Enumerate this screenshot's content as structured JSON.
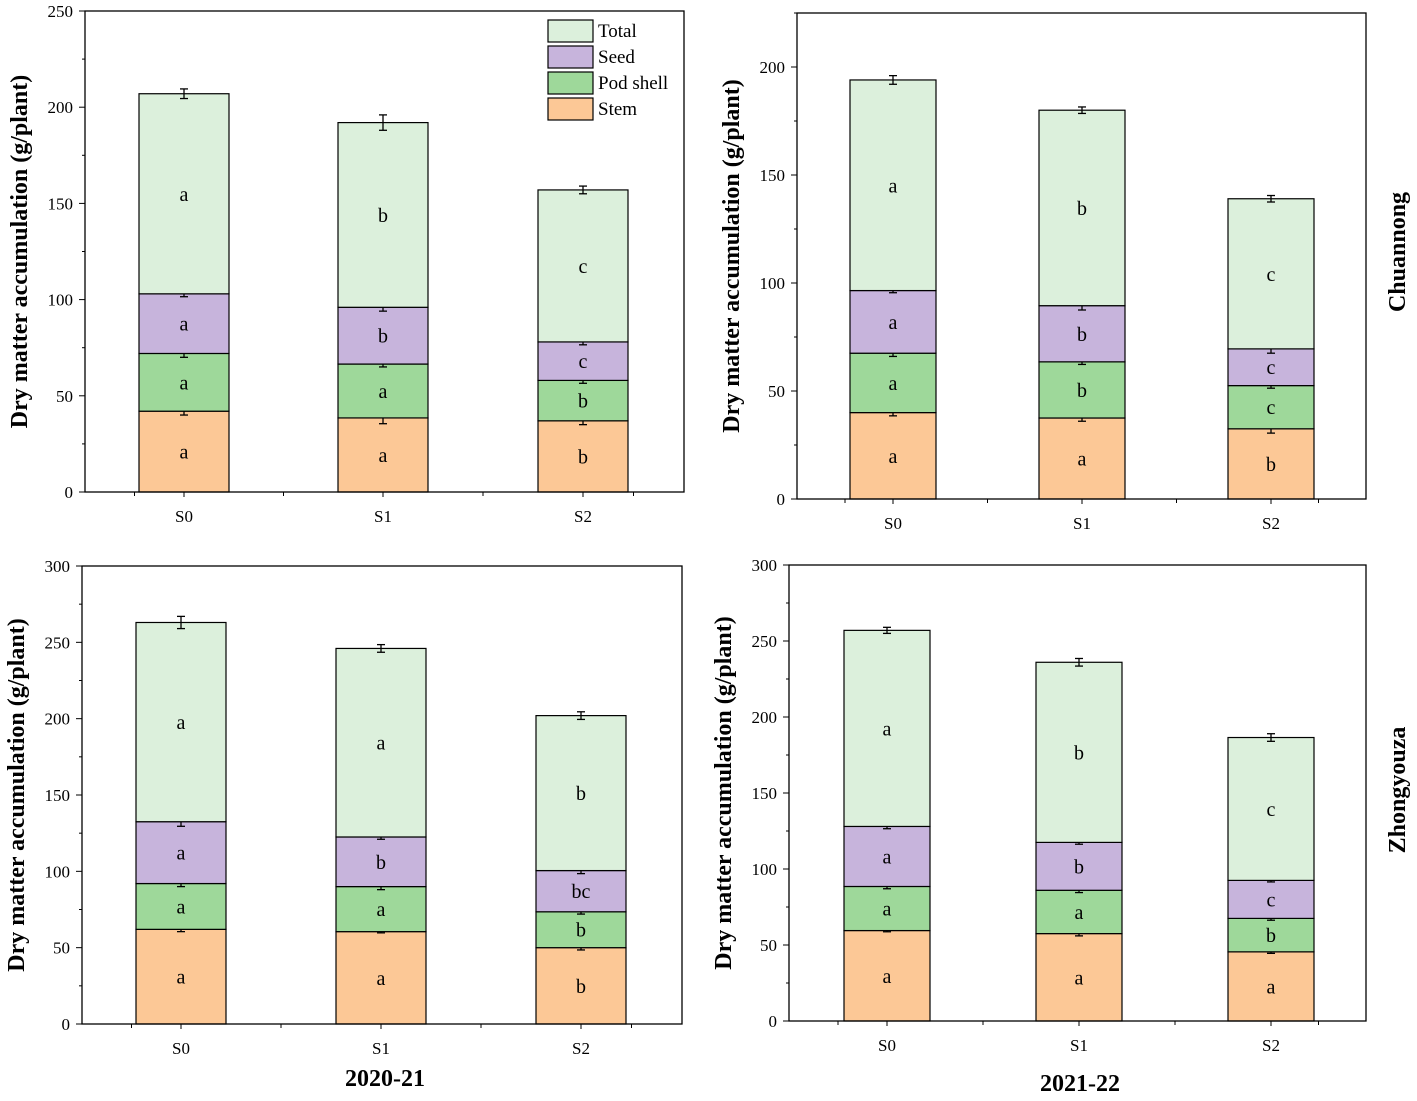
{
  "legend": {
    "position": "top-right of first panel",
    "items": [
      {
        "label": "Total",
        "color": "#dcf0dc"
      },
      {
        "label": "Seed",
        "color": "#c7b4dc"
      },
      {
        "label": "Pod shell",
        "color": "#9ed89a"
      },
      {
        "label": "Stem",
        "color": "#fcc896"
      }
    ]
  },
  "row_labels": [
    "Chuannong",
    "Zhongyouza"
  ],
  "col_labels": [
    "2020-21",
    "2021-22"
  ],
  "chart_data": [
    {
      "type": "bar",
      "stacked": true,
      "panel": "Chuannong 2020-21",
      "ylabel": "Dry matter accumulation (g/plant)",
      "ylim": [
        0,
        250
      ],
      "yticks": [
        0,
        50,
        100,
        150,
        200,
        250
      ],
      "categories": [
        "S0",
        "S1",
        "S2"
      ],
      "note": "values are cumulative stack tops (g/plant)",
      "series": [
        {
          "name": "Stem",
          "values": [
            42,
            38.5,
            37
          ],
          "errors": [
            2,
            3,
            2
          ],
          "letters": [
            "a",
            "a",
            "b"
          ]
        },
        {
          "name": "Pod shell",
          "values": [
            72,
            66.5,
            58
          ],
          "errors": [
            2,
            1.5,
            1.5
          ],
          "letters": [
            "a",
            "a",
            "b"
          ]
        },
        {
          "name": "Seed",
          "values": [
            103,
            96,
            78
          ],
          "errors": [
            1.5,
            2,
            1.5
          ],
          "letters": [
            "a",
            "b",
            "c"
          ]
        },
        {
          "name": "Total",
          "values": [
            207,
            192,
            157
          ],
          "errors": [
            2.5,
            4,
            2
          ],
          "letters": [
            "a",
            "b",
            "c"
          ]
        }
      ]
    },
    {
      "type": "bar",
      "stacked": true,
      "panel": "Chuannong 2021-22",
      "ylabel": "Dry matter accumulation (g/plant)",
      "ylim": [
        0,
        225
      ],
      "yticks": [
        0,
        50,
        100,
        150,
        200
      ],
      "categories": [
        "S0",
        "S1",
        "S2"
      ],
      "series": [
        {
          "name": "Stem",
          "values": [
            40,
            37.5,
            32.5
          ],
          "errors": [
            1.5,
            1.5,
            2
          ],
          "letters": [
            "a",
            "a",
            "b"
          ]
        },
        {
          "name": "Pod shell",
          "values": [
            67.5,
            63.5,
            52.5
          ],
          "errors": [
            1.5,
            1.2,
            1.2
          ],
          "letters": [
            "a",
            "b",
            "c"
          ]
        },
        {
          "name": "Seed",
          "values": [
            96.5,
            89.5,
            69.5
          ],
          "errors": [
            1,
            2,
            2
          ],
          "letters": [
            "a",
            "b",
            "c"
          ]
        },
        {
          "name": "Total",
          "values": [
            194,
            180,
            139
          ],
          "errors": [
            2,
            1.5,
            1.5
          ],
          "letters": [
            "a",
            "b",
            "c"
          ]
        }
      ]
    },
    {
      "type": "bar",
      "stacked": true,
      "panel": "Zhongyouza 2020-21",
      "ylabel": "Dry matter accumulation (g/plant)",
      "ylim": [
        0,
        300
      ],
      "yticks": [
        0,
        50,
        100,
        150,
        200,
        250,
        300
      ],
      "categories": [
        "S0",
        "S1",
        "S2"
      ],
      "series": [
        {
          "name": "Stem",
          "values": [
            62,
            60.5,
            50
          ],
          "errors": [
            1.5,
            0.8,
            1.5
          ],
          "letters": [
            "a",
            "a",
            "b"
          ]
        },
        {
          "name": "Pod shell",
          "values": [
            92,
            90,
            73.5
          ],
          "errors": [
            2,
            2,
            1.5
          ],
          "letters": [
            "a",
            "a",
            "b"
          ]
        },
        {
          "name": "Seed",
          "values": [
            132.5,
            122.5,
            100.5
          ],
          "errors": [
            3,
            1.5,
            2
          ],
          "letters": [
            "a",
            "b",
            "bc"
          ]
        },
        {
          "name": "Total",
          "values": [
            263,
            246,
            202
          ],
          "errors": [
            4,
            2.5,
            2.5
          ],
          "letters": [
            "a",
            "a",
            "b"
          ]
        }
      ]
    },
    {
      "type": "bar",
      "stacked": true,
      "panel": "Zhongyouza 2021-22",
      "ylabel": "Dry matter accumulation (g/plant)",
      "ylim": [
        0,
        300
      ],
      "yticks": [
        0,
        50,
        100,
        150,
        200,
        250,
        300
      ],
      "categories": [
        "S0",
        "S1",
        "S2"
      ],
      "series": [
        {
          "name": "Stem",
          "values": [
            59.5,
            57.5,
            45.5
          ],
          "errors": [
            0.8,
            1.5,
            1
          ],
          "letters": [
            "a",
            "a",
            "a"
          ]
        },
        {
          "name": "Pod shell",
          "values": [
            88.5,
            86,
            67.5
          ],
          "errors": [
            1.5,
            1.5,
            1.2
          ],
          "letters": [
            "a",
            "a",
            "b"
          ]
        },
        {
          "name": "Seed",
          "values": [
            128,
            117.5,
            92.5
          ],
          "errors": [
            1.5,
            1.2,
            1
          ],
          "letters": [
            "a",
            "b",
            "c"
          ]
        },
        {
          "name": "Total",
          "values": [
            257,
            236,
            186.5
          ],
          "errors": [
            2,
            2.5,
            2.5
          ],
          "letters": [
            "a",
            "b",
            "c"
          ]
        }
      ]
    }
  ]
}
